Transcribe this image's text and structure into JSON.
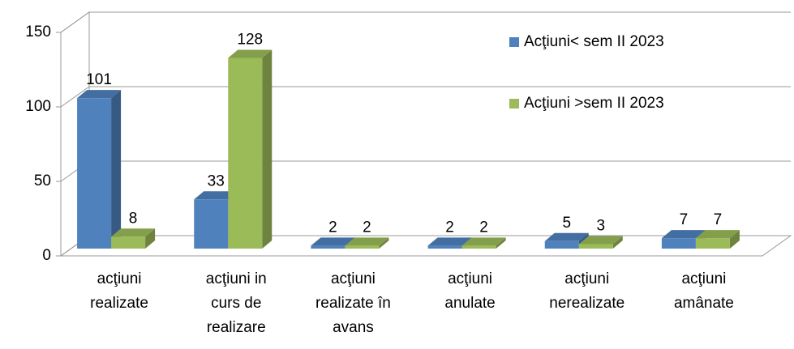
{
  "chart_data": {
    "type": "bar3d",
    "categories": [
      "acţiuni\nrealizate",
      "acţiuni in\ncurs de\nrealizare",
      "acţiuni\nrealizate în\navans",
      "acţiuni\nanulate",
      "acţiuni\nnerealizate",
      "acţiuni\namânate"
    ],
    "series": [
      {
        "name": "Acţiuni< sem II 2023",
        "color": "#4f81bd",
        "values": [
          101,
          33,
          2,
          2,
          5,
          7
        ]
      },
      {
        "name": "Acţiuni >sem II 2023",
        "color": "#9bbb59",
        "values": [
          8,
          128,
          2,
          2,
          3,
          7
        ]
      }
    ],
    "ylim": [
      0,
      150
    ],
    "yticks": [
      0,
      50,
      100,
      150
    ],
    "grid": true,
    "legend": "top-right"
  }
}
